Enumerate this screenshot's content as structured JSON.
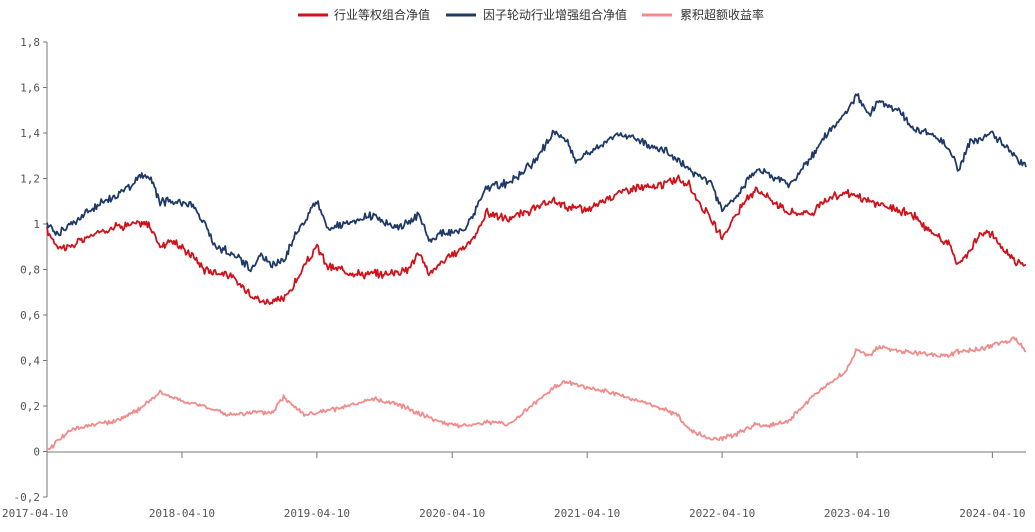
{
  "chart_data": {
    "type": "line",
    "title": "",
    "xlabel": "",
    "ylabel": "",
    "ylim": [
      -0.2,
      1.8
    ],
    "y_ticks": [
      "-0,2",
      "0",
      "0,2",
      "0,4",
      "0,6",
      "0,8",
      "1",
      "1,2",
      "1,4",
      "1,6",
      "1,8"
    ],
    "y_tick_values": [
      -0.2,
      0,
      0.2,
      0.4,
      0.6,
      0.8,
      1.0,
      1.2,
      1.4,
      1.6,
      1.8
    ],
    "x_start": "2017-04-10",
    "x_end": "2024-07-10",
    "x_ticks": [
      "2017-04-10",
      "2018-04-10",
      "2019-04-10",
      "2020-04-10",
      "2021-04-10",
      "2022-04-10",
      "2023-04-10",
      "2024-04-10"
    ],
    "grid": false,
    "legend_position": "top-center",
    "series": [
      {
        "name": "行业等权组合净值",
        "color": "#d0121b",
        "points": [
          [
            "2017-04-10",
            0.97
          ],
          [
            "2017-05-10",
            0.9
          ],
          [
            "2017-06-10",
            0.9
          ],
          [
            "2017-08-10",
            0.95
          ],
          [
            "2017-10-10",
            0.99
          ],
          [
            "2017-12-10",
            1.0
          ],
          [
            "2018-01-10",
            1.0
          ],
          [
            "2018-02-10",
            0.9
          ],
          [
            "2018-03-10",
            0.93
          ],
          [
            "2018-05-10",
            0.86
          ],
          [
            "2018-06-10",
            0.8
          ],
          [
            "2018-08-10",
            0.78
          ],
          [
            "2018-10-10",
            0.7
          ],
          [
            "2018-11-10",
            0.66
          ],
          [
            "2018-12-10",
            0.66
          ],
          [
            "2019-01-10",
            0.67
          ],
          [
            "2019-02-10",
            0.74
          ],
          [
            "2019-03-10",
            0.82
          ],
          [
            "2019-04-10",
            0.9
          ],
          [
            "2019-05-10",
            0.81
          ],
          [
            "2019-06-10",
            0.8
          ],
          [
            "2019-08-10",
            0.78
          ],
          [
            "2019-10-10",
            0.78
          ],
          [
            "2019-12-10",
            0.8
          ],
          [
            "2020-01-10",
            0.87
          ],
          [
            "2020-02-10",
            0.78
          ],
          [
            "2020-03-10",
            0.83
          ],
          [
            "2020-04-10",
            0.86
          ],
          [
            "2020-06-10",
            0.94
          ],
          [
            "2020-07-10",
            1.05
          ],
          [
            "2020-09-10",
            1.02
          ],
          [
            "2020-11-10",
            1.06
          ],
          [
            "2021-01-10",
            1.1
          ],
          [
            "2021-02-10",
            1.08
          ],
          [
            "2021-04-10",
            1.06
          ],
          [
            "2021-06-10",
            1.12
          ],
          [
            "2021-08-10",
            1.16
          ],
          [
            "2021-10-10",
            1.16
          ],
          [
            "2021-12-10",
            1.2
          ],
          [
            "2022-01-10",
            1.17
          ],
          [
            "2022-03-10",
            1.02
          ],
          [
            "2022-04-10",
            0.94
          ],
          [
            "2022-05-10",
            1.02
          ],
          [
            "2022-07-10",
            1.16
          ],
          [
            "2022-08-10",
            1.12
          ],
          [
            "2022-10-10",
            1.05
          ],
          [
            "2022-12-10",
            1.05
          ],
          [
            "2023-01-10",
            1.1
          ],
          [
            "2023-03-10",
            1.14
          ],
          [
            "2023-05-10",
            1.1
          ],
          [
            "2023-07-10",
            1.07
          ],
          [
            "2023-09-10",
            1.04
          ],
          [
            "2023-10-10",
            0.98
          ],
          [
            "2023-12-10",
            0.92
          ],
          [
            "2024-01-10",
            0.82
          ],
          [
            "2024-02-10",
            0.89
          ],
          [
            "2024-03-10",
            0.96
          ],
          [
            "2024-04-10",
            0.95
          ],
          [
            "2024-05-10",
            0.89
          ],
          [
            "2024-06-10",
            0.84
          ],
          [
            "2024-07-10",
            0.82
          ]
        ]
      },
      {
        "name": "因子轮动行业增强组合净值",
        "color": "#1f3a68",
        "points": [
          [
            "2017-04-10",
            1.0
          ],
          [
            "2017-05-10",
            0.96
          ],
          [
            "2017-07-10",
            1.03
          ],
          [
            "2017-09-10",
            1.1
          ],
          [
            "2017-11-10",
            1.15
          ],
          [
            "2017-12-10",
            1.2
          ],
          [
            "2018-01-10",
            1.22
          ],
          [
            "2018-02-10",
            1.1
          ],
          [
            "2018-04-10",
            1.1
          ],
          [
            "2018-05-10",
            1.08
          ],
          [
            "2018-06-10",
            1.0
          ],
          [
            "2018-07-10",
            0.9
          ],
          [
            "2018-09-10",
            0.86
          ],
          [
            "2018-10-10",
            0.8
          ],
          [
            "2018-11-10",
            0.86
          ],
          [
            "2018-12-10",
            0.82
          ],
          [
            "2019-01-10",
            0.84
          ],
          [
            "2019-02-10",
            0.95
          ],
          [
            "2019-04-10",
            1.1
          ],
          [
            "2019-05-10",
            0.98
          ],
          [
            "2019-07-10",
            1.0
          ],
          [
            "2019-09-10",
            1.04
          ],
          [
            "2019-11-10",
            0.98
          ],
          [
            "2020-01-10",
            1.04
          ],
          [
            "2020-02-10",
            0.92
          ],
          [
            "2020-03-10",
            0.96
          ],
          [
            "2020-05-10",
            0.97
          ],
          [
            "2020-06-10",
            1.05
          ],
          [
            "2020-07-10",
            1.16
          ],
          [
            "2020-09-10",
            1.18
          ],
          [
            "2020-11-10",
            1.26
          ],
          [
            "2021-01-10",
            1.4
          ],
          [
            "2021-02-10",
            1.38
          ],
          [
            "2021-03-10",
            1.28
          ],
          [
            "2021-05-10",
            1.34
          ],
          [
            "2021-07-10",
            1.4
          ],
          [
            "2021-09-10",
            1.36
          ],
          [
            "2021-11-10",
            1.32
          ],
          [
            "2022-01-10",
            1.24
          ],
          [
            "2022-03-10",
            1.18
          ],
          [
            "2022-04-10",
            1.06
          ],
          [
            "2022-05-10",
            1.1
          ],
          [
            "2022-07-10",
            1.24
          ],
          [
            "2022-09-10",
            1.2
          ],
          [
            "2022-10-10",
            1.17
          ],
          [
            "2022-12-10",
            1.3
          ],
          [
            "2023-01-10",
            1.38
          ],
          [
            "2023-03-10",
            1.48
          ],
          [
            "2023-04-10",
            1.57
          ],
          [
            "2023-05-10",
            1.48
          ],
          [
            "2023-06-10",
            1.54
          ],
          [
            "2023-08-10",
            1.48
          ],
          [
            "2023-09-10",
            1.42
          ],
          [
            "2023-11-10",
            1.38
          ],
          [
            "2023-12-10",
            1.34
          ],
          [
            "2024-01-10",
            1.24
          ],
          [
            "2024-02-10",
            1.36
          ],
          [
            "2024-04-10",
            1.4
          ],
          [
            "2024-05-10",
            1.35
          ],
          [
            "2024-06-10",
            1.3
          ],
          [
            "2024-07-10",
            1.25
          ]
        ]
      },
      {
        "name": "累积超额收益率",
        "color": "#f08c8c",
        "points": [
          [
            "2017-04-10",
            0.0
          ],
          [
            "2017-05-10",
            0.05
          ],
          [
            "2017-06-10",
            0.09
          ],
          [
            "2017-08-10",
            0.12
          ],
          [
            "2017-10-10",
            0.13
          ],
          [
            "2017-12-10",
            0.18
          ],
          [
            "2018-01-10",
            0.22
          ],
          [
            "2018-02-10",
            0.26
          ],
          [
            "2018-04-10",
            0.22
          ],
          [
            "2018-06-10",
            0.2
          ],
          [
            "2018-08-10",
            0.16
          ],
          [
            "2018-10-10",
            0.17
          ],
          [
            "2018-12-10",
            0.17
          ],
          [
            "2019-01-10",
            0.24
          ],
          [
            "2019-03-10",
            0.16
          ],
          [
            "2019-05-10",
            0.18
          ],
          [
            "2019-07-10",
            0.2
          ],
          [
            "2019-09-10",
            0.23
          ],
          [
            "2019-11-10",
            0.21
          ],
          [
            "2020-01-10",
            0.17
          ],
          [
            "2020-03-10",
            0.13
          ],
          [
            "2020-05-10",
            0.11
          ],
          [
            "2020-07-10",
            0.13
          ],
          [
            "2020-09-10",
            0.12
          ],
          [
            "2020-11-10",
            0.2
          ],
          [
            "2021-01-10",
            0.28
          ],
          [
            "2021-02-10",
            0.31
          ],
          [
            "2021-04-10",
            0.28
          ],
          [
            "2021-06-10",
            0.26
          ],
          [
            "2021-08-10",
            0.23
          ],
          [
            "2021-10-10",
            0.2
          ],
          [
            "2021-12-10",
            0.16
          ],
          [
            "2022-01-10",
            0.1
          ],
          [
            "2022-03-10",
            0.05
          ],
          [
            "2022-05-10",
            0.07
          ],
          [
            "2022-07-10",
            0.12
          ],
          [
            "2022-08-10",
            0.11
          ],
          [
            "2022-10-10",
            0.14
          ],
          [
            "2022-12-10",
            0.24
          ],
          [
            "2023-01-10",
            0.28
          ],
          [
            "2023-03-10",
            0.35
          ],
          [
            "2023-04-10",
            0.45
          ],
          [
            "2023-05-10",
            0.42
          ],
          [
            "2023-06-10",
            0.46
          ],
          [
            "2023-08-10",
            0.44
          ],
          [
            "2023-10-10",
            0.43
          ],
          [
            "2023-12-10",
            0.42
          ],
          [
            "2024-01-10",
            0.44
          ],
          [
            "2024-03-10",
            0.45
          ],
          [
            "2024-05-10",
            0.48
          ],
          [
            "2024-06-10",
            0.5
          ],
          [
            "2024-07-10",
            0.44
          ]
        ]
      }
    ]
  }
}
